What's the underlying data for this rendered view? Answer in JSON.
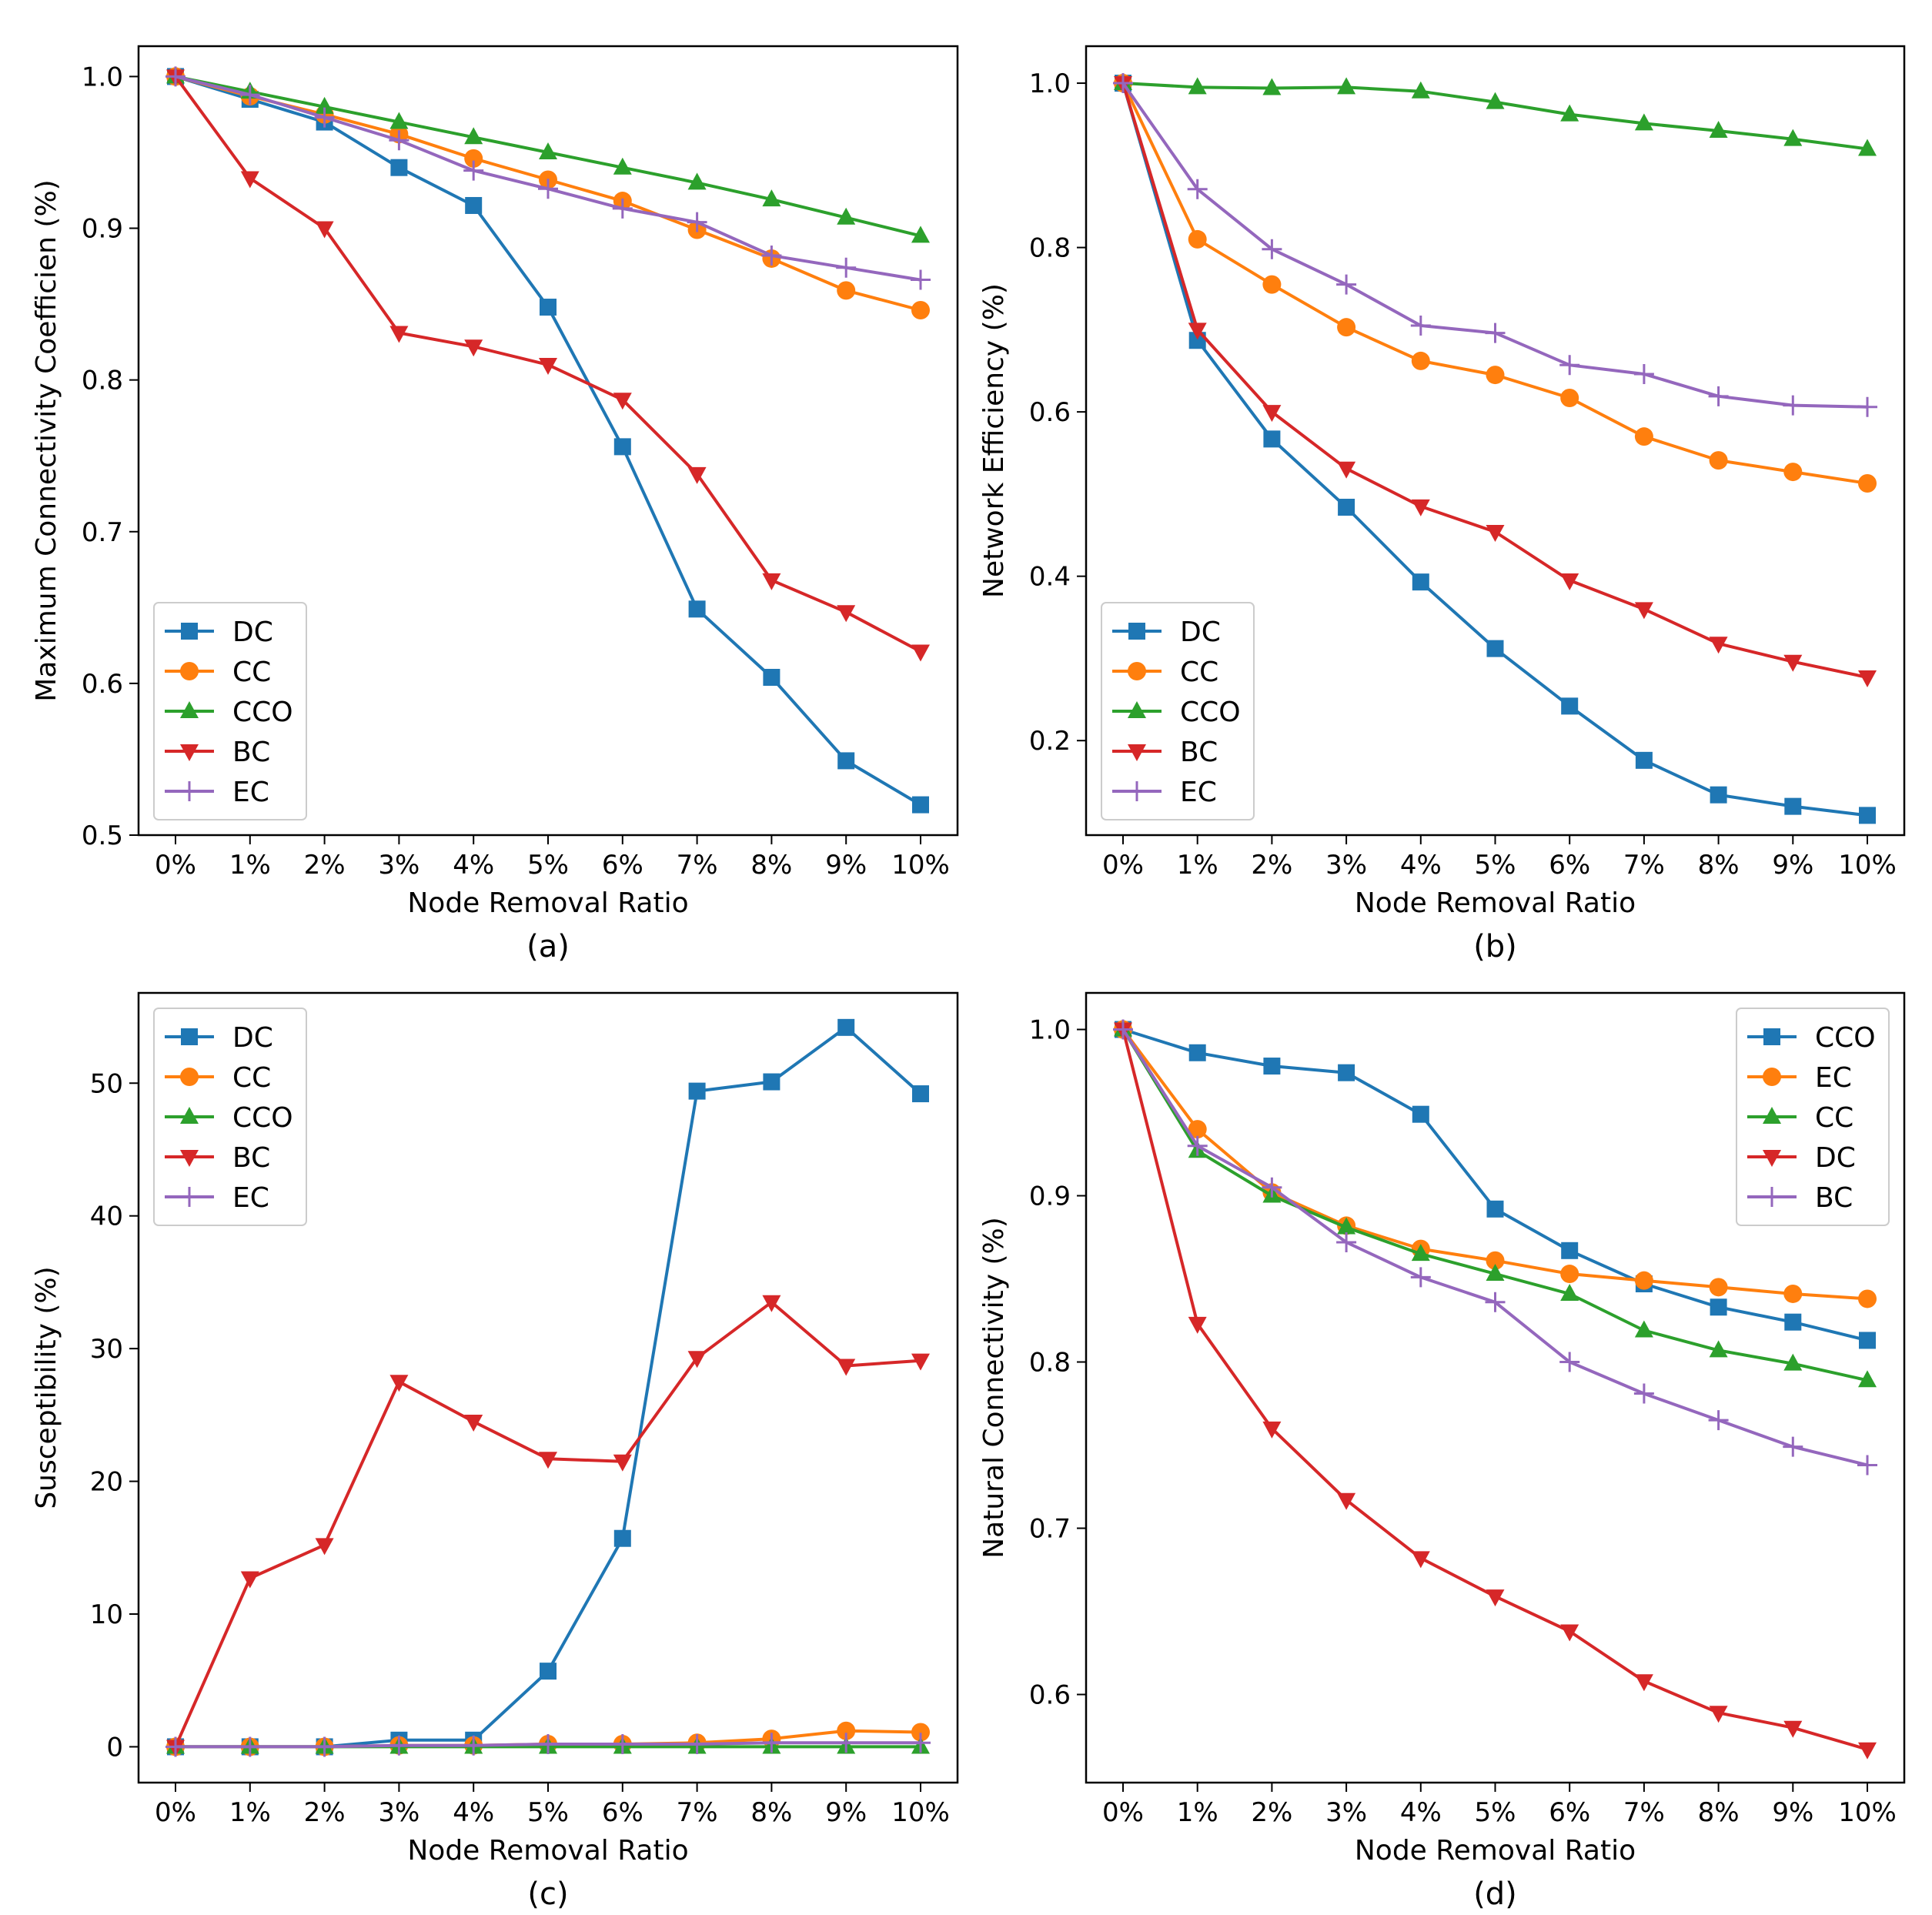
{
  "colors": {
    "blue": "#1f77b4",
    "orange": "#ff7f0e",
    "green": "#2ca02c",
    "red": "#d62728",
    "purple": "#9467bd"
  },
  "chart_data": [
    {
      "type": "line",
      "panel": "(a)",
      "xlabel": "Node Removal Ratio",
      "ylabel": "Maximum Connectivity Coefficien (%)",
      "x": [
        "0%",
        "1%",
        "2%",
        "3%",
        "4%",
        "5%",
        "6%",
        "7%",
        "8%",
        "9%",
        "10%"
      ],
      "ylim": [
        0.5,
        1.02
      ],
      "yticks": [
        0.5,
        0.6,
        0.7,
        0.8,
        0.9,
        1.0
      ],
      "ytick_labels": [
        "0.5",
        "0.6",
        "0.7",
        "0.8",
        "0.9",
        "1.0"
      ],
      "legend_position": "lower-left",
      "series": [
        {
          "name": "DC",
          "color": "blue",
          "marker": "square",
          "values": [
            1.0,
            0.985,
            0.97,
            0.94,
            0.915,
            0.848,
            0.756,
            0.649,
            0.604,
            0.549,
            0.52
          ]
        },
        {
          "name": "CC",
          "color": "orange",
          "marker": "circle",
          "values": [
            1.0,
            0.987,
            0.975,
            0.962,
            0.946,
            0.932,
            0.918,
            0.899,
            0.88,
            0.859,
            0.846
          ]
        },
        {
          "name": "CCO",
          "color": "green",
          "marker": "triangle-up",
          "values": [
            1.0,
            0.99,
            0.98,
            0.97,
            0.96,
            0.95,
            0.94,
            0.93,
            0.919,
            0.907,
            0.895
          ]
        },
        {
          "name": "BC",
          "color": "red",
          "marker": "triangle-down",
          "values": [
            1.0,
            0.933,
            0.9,
            0.831,
            0.822,
            0.81,
            0.787,
            0.738,
            0.668,
            0.647,
            0.621
          ]
        },
        {
          "name": "EC",
          "color": "purple",
          "marker": "plus",
          "values": [
            1.0,
            0.988,
            0.973,
            0.958,
            0.938,
            0.926,
            0.913,
            0.904,
            0.882,
            0.874,
            0.866
          ]
        }
      ]
    },
    {
      "type": "line",
      "panel": "(b)",
      "xlabel": "Node Removal Ratio",
      "ylabel": "Network Efficiency (%)",
      "x": [
        "0%",
        "1%",
        "2%",
        "3%",
        "4%",
        "5%",
        "6%",
        "7%",
        "8%",
        "9%",
        "10%"
      ],
      "ylim": [
        0.085,
        1.045
      ],
      "yticks": [
        0.2,
        0.4,
        0.6,
        0.8,
        1.0
      ],
      "ytick_labels": [
        "0.2",
        "0.4",
        "0.6",
        "0.8",
        "1.0"
      ],
      "legend_position": "lower-left",
      "series": [
        {
          "name": "DC",
          "color": "blue",
          "marker": "square",
          "values": [
            1.0,
            0.687,
            0.567,
            0.484,
            0.393,
            0.312,
            0.242,
            0.176,
            0.134,
            0.12,
            0.109
          ]
        },
        {
          "name": "CC",
          "color": "orange",
          "marker": "circle",
          "values": [
            1.0,
            0.81,
            0.755,
            0.703,
            0.662,
            0.645,
            0.617,
            0.57,
            0.541,
            0.527,
            0.513
          ]
        },
        {
          "name": "CCO",
          "color": "green",
          "marker": "triangle-up",
          "values": [
            1.0,
            0.995,
            0.994,
            0.995,
            0.99,
            0.977,
            0.962,
            0.951,
            0.942,
            0.932,
            0.92
          ]
        },
        {
          "name": "BC",
          "color": "red",
          "marker": "triangle-down",
          "values": [
            1.0,
            0.7,
            0.6,
            0.531,
            0.485,
            0.454,
            0.395,
            0.36,
            0.318,
            0.296,
            0.277
          ]
        },
        {
          "name": "EC",
          "color": "purple",
          "marker": "plus",
          "values": [
            1.0,
            0.871,
            0.798,
            0.755,
            0.705,
            0.696,
            0.657,
            0.646,
            0.619,
            0.608,
            0.606
          ]
        }
      ]
    },
    {
      "type": "line",
      "panel": "(c)",
      "xlabel": "Node Removal Ratio",
      "ylabel": "Susceptibility (%)",
      "x": [
        "0%",
        "1%",
        "2%",
        "3%",
        "4%",
        "5%",
        "6%",
        "7%",
        "8%",
        "9%",
        "10%"
      ],
      "ylim": [
        -2.7,
        56.8
      ],
      "yticks": [
        0,
        10,
        20,
        30,
        40,
        50
      ],
      "ytick_labels": [
        "0",
        "10",
        "20",
        "30",
        "40",
        "50"
      ],
      "legend_position": "upper-left",
      "series": [
        {
          "name": "DC",
          "color": "blue",
          "marker": "square",
          "values": [
            0.0,
            0.0,
            0.0,
            0.5,
            0.5,
            5.7,
            15.7,
            49.4,
            50.1,
            54.2,
            49.2
          ]
        },
        {
          "name": "CC",
          "color": "orange",
          "marker": "circle",
          "values": [
            0.0,
            0.0,
            0.0,
            0.1,
            0.1,
            0.2,
            0.2,
            0.3,
            0.6,
            1.2,
            1.1
          ]
        },
        {
          "name": "CCO",
          "color": "green",
          "marker": "triangle-up",
          "values": [
            0.0,
            0.0,
            0.0,
            0.0,
            0.0,
            0.0,
            0.0,
            0.0,
            0.0,
            0.0,
            0.0
          ]
        },
        {
          "name": "BC",
          "color": "red",
          "marker": "triangle-down",
          "values": [
            0.0,
            12.7,
            15.2,
            27.5,
            24.5,
            21.7,
            21.5,
            29.3,
            33.5,
            28.7,
            29.1
          ]
        },
        {
          "name": "EC",
          "color": "purple",
          "marker": "plus",
          "values": [
            0.0,
            0.0,
            0.0,
            0.1,
            0.1,
            0.2,
            0.2,
            0.2,
            0.3,
            0.3,
            0.3
          ]
        }
      ]
    },
    {
      "type": "line",
      "panel": "(d)",
      "xlabel": "Node Removal Ratio",
      "ylabel": "Natural Connectivity (%)",
      "x": [
        "0%",
        "1%",
        "2%",
        "3%",
        "4%",
        "5%",
        "6%",
        "7%",
        "8%",
        "9%",
        "10%"
      ],
      "ylim": [
        0.547,
        1.022
      ],
      "yticks": [
        0.6,
        0.7,
        0.8,
        0.9,
        1.0
      ],
      "ytick_labels": [
        "0.6",
        "0.7",
        "0.8",
        "0.9",
        "1.0"
      ],
      "legend_position": "upper-right",
      "series": [
        {
          "name": "CCO",
          "color": "blue",
          "marker": "square",
          "values": [
            1.0,
            0.986,
            0.978,
            0.974,
            0.949,
            0.892,
            0.867,
            0.847,
            0.833,
            0.824,
            0.813
          ]
        },
        {
          "name": "EC",
          "color": "orange",
          "marker": "circle",
          "values": [
            1.0,
            0.94,
            0.902,
            0.882,
            0.868,
            0.861,
            0.853,
            0.849,
            0.845,
            0.841,
            0.838
          ]
        },
        {
          "name": "CC",
          "color": "green",
          "marker": "triangle-up",
          "values": [
            1.0,
            0.927,
            0.9,
            0.881,
            0.865,
            0.853,
            0.841,
            0.819,
            0.807,
            0.799,
            0.789
          ]
        },
        {
          "name": "DC",
          "color": "red",
          "marker": "triangle-down",
          "values": [
            1.0,
            0.823,
            0.76,
            0.717,
            0.682,
            0.659,
            0.638,
            0.608,
            0.589,
            0.58,
            0.567
          ]
        },
        {
          "name": "BC",
          "color": "purple",
          "marker": "plus",
          "values": [
            1.0,
            0.93,
            0.905,
            0.872,
            0.851,
            0.836,
            0.8,
            0.781,
            0.765,
            0.749,
            0.738
          ]
        }
      ]
    }
  ]
}
